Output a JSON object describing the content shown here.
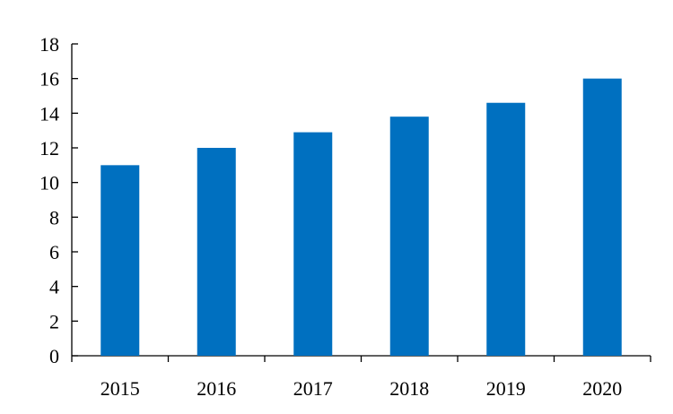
{
  "chart_data": {
    "type": "bar",
    "title": "",
    "xlabel": "",
    "ylabel": "",
    "categories": [
      "2015",
      "2016",
      "2017",
      "2018",
      "2019",
      "2020"
    ],
    "values": [
      11,
      12,
      12.9,
      13.8,
      14.6,
      16
    ],
    "ylim": [
      0,
      18
    ],
    "yticks": [
      "0",
      "2",
      "4",
      "6",
      "8",
      "10",
      "12",
      "14",
      "16",
      "18"
    ],
    "grid": false,
    "legend": "none",
    "bar_color": "#0070C0"
  }
}
